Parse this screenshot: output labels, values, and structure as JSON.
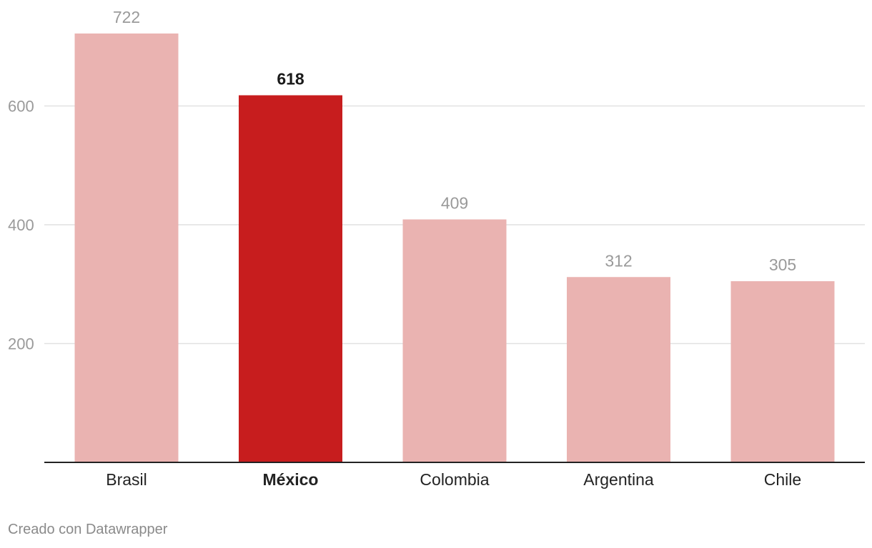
{
  "chart_data": {
    "type": "bar",
    "categories": [
      "Brasil",
      "México",
      "Colombia",
      "Argentina",
      "Chile"
    ],
    "values": [
      722,
      618,
      409,
      312,
      305
    ],
    "highlight": "México",
    "title": "",
    "xlabel": "",
    "ylabel": "",
    "ylim": [
      0,
      800
    ],
    "yticks": [
      200,
      400,
      600
    ],
    "grid": true,
    "colors": {
      "bar": "#eab3b1",
      "highlight": "#c71d1e",
      "grid": "#e1e1e1",
      "axis": "#222222"
    }
  },
  "footer": {
    "credit": "Creado con Datawrapper"
  }
}
